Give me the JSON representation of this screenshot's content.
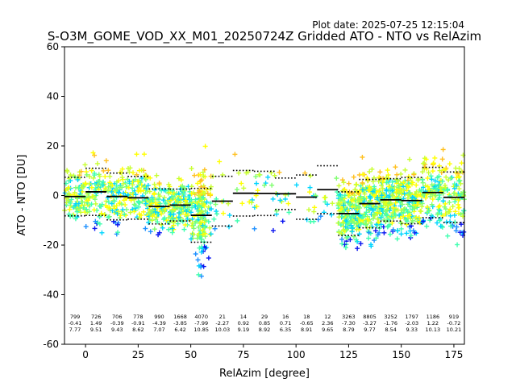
{
  "chart_data": {
    "type": "scatter",
    "title": "S-O3M_GOME_VOD_XX_M01_20250724Z Gridded ATO - NTO vs RelAzim",
    "subtitle": "Plot date: 2025-07-25 12:15:04",
    "xlabel": "RelAzim [degree]",
    "ylabel": "ATO - NTO [DU]",
    "xlim": [
      -10,
      180
    ],
    "ylim": [
      -60,
      60
    ],
    "xticks": [
      0,
      25,
      50,
      75,
      100,
      125,
      150,
      175
    ],
    "yticks": [
      -60,
      -40,
      -20,
      0,
      20,
      40,
      60
    ],
    "grid": false,
    "marker": "+",
    "point_colors": [
      "#0a14f0",
      "#1e90ff",
      "#00d5ff",
      "#40ffb0",
      "#80ff70",
      "#c8ff30",
      "#ffff00",
      "#ffc020"
    ],
    "bins": [
      {
        "center": -5,
        "n": "799",
        "mean": "-0.41",
        "std": "7.77",
        "mean_val": -0.41,
        "std_val": 7.77
      },
      {
        "center": 5,
        "n": "726",
        "mean": "1.49",
        "std": "9.51",
        "mean_val": 1.49,
        "std_val": 9.51
      },
      {
        "center": 15,
        "n": "706",
        "mean": "-0.39",
        "std": "9.43",
        "mean_val": -0.39,
        "std_val": 9.43
      },
      {
        "center": 25,
        "n": "778",
        "mean": "-0.91",
        "std": "8.62",
        "mean_val": -0.91,
        "std_val": 8.62
      },
      {
        "center": 35,
        "n": "990",
        "mean": "-4.39",
        "std": "7.07",
        "mean_val": -4.39,
        "std_val": 7.07
      },
      {
        "center": 45,
        "n": "1668",
        "mean": "-3.85",
        "std": "6.42",
        "mean_val": -3.85,
        "std_val": 6.42
      },
      {
        "center": 55,
        "n": "4070",
        "mean": "-7.99",
        "std": "10.85",
        "mean_val": -7.99,
        "std_val": 10.85
      },
      {
        "center": 65,
        "n": "21",
        "mean": "-2.27",
        "std": "10.03",
        "mean_val": -2.27,
        "std_val": 10.03
      },
      {
        "center": 75,
        "n": "14",
        "mean": "0.92",
        "std": "9.19",
        "mean_val": 0.92,
        "std_val": 9.19
      },
      {
        "center": 85,
        "n": "29",
        "mean": "0.85",
        "std": "8.92",
        "mean_val": 0.85,
        "std_val": 8.92
      },
      {
        "center": 95,
        "n": "16",
        "mean": "0.71",
        "std": "6.35",
        "mean_val": 0.71,
        "std_val": 6.35
      },
      {
        "center": 105,
        "n": "18",
        "mean": "-0.65",
        "std": "8.91",
        "mean_val": -0.65,
        "std_val": 8.91
      },
      {
        "center": 115,
        "n": "12",
        "mean": "2.36",
        "std": "9.65",
        "mean_val": 2.36,
        "std_val": 9.65
      },
      {
        "center": 125,
        "n": "3263",
        "mean": "-7.30",
        "std": "8.79",
        "mean_val": -7.3,
        "std_val": 8.79
      },
      {
        "center": 135,
        "n": "8805",
        "mean": "-3.27",
        "std": "9.77",
        "mean_val": -3.27,
        "std_val": 9.77
      },
      {
        "center": 145,
        "n": "3252",
        "mean": "-1.76",
        "std": "8.54",
        "mean_val": -1.76,
        "std_val": 8.54
      },
      {
        "center": 155,
        "n": "1797",
        "mean": "-2.03",
        "std": "9.33",
        "mean_val": -2.03,
        "std_val": 9.33
      },
      {
        "center": 165,
        "n": "1186",
        "mean": "1.22",
        "std": "10.13",
        "mean_val": 1.22,
        "std_val": 10.13
      },
      {
        "center": 175,
        "n": "919",
        "mean": "-0.72",
        "std": "10.21",
        "mean_val": -0.72,
        "std_val": 10.21
      }
    ]
  }
}
